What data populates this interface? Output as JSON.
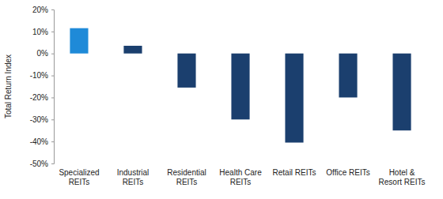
{
  "chart_data": {
    "type": "bar",
    "y_label": "Total Return Index",
    "categories": [
      "Specialized REITs",
      "Industrial REITs",
      "Residential REITs",
      "Health Care REITs",
      "Retail REITs",
      "Office REITs",
      "Hotel & Resort REITs"
    ],
    "values": [
      11.5,
      3.5,
      -15.5,
      -30,
      -40.5,
      -20,
      -35
    ],
    "colors": [
      "#1f8ad8",
      "#1b3f6e",
      "#1b3f6e",
      "#1b3f6e",
      "#1b3f6e",
      "#1b3f6e",
      "#1b3f6e"
    ],
    "ylim": [
      -50,
      20
    ],
    "yticks": [
      {
        "value": -50,
        "label": "-50%"
      },
      {
        "value": -40,
        "label": "-40%"
      },
      {
        "value": -30,
        "label": "-30%"
      },
      {
        "value": -20,
        "label": "-20%"
      },
      {
        "value": -10,
        "label": "-10%"
      },
      {
        "value": 0,
        "label": "0%"
      },
      {
        "value": 10,
        "label": "10%"
      },
      {
        "value": 20,
        "label": "20%"
      }
    ],
    "grid": false
  }
}
